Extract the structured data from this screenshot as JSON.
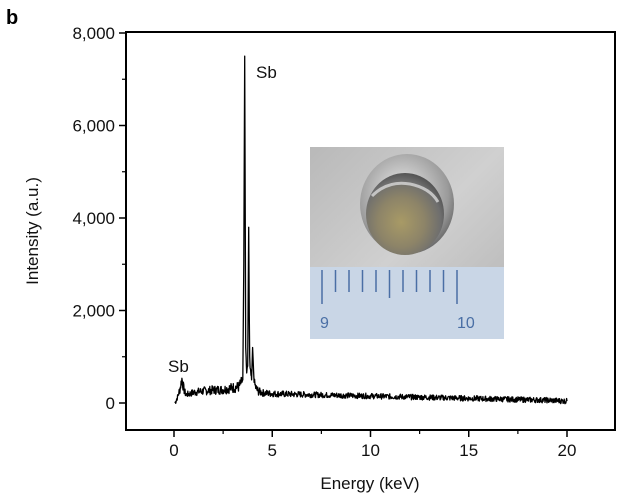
{
  "panel_label": "b",
  "chart_data": {
    "type": "line",
    "title": "",
    "xlabel": "Energy (keV)",
    "ylabel": "Intensity (a.u.)",
    "xlim": [
      -2.5,
      22.5
    ],
    "ylim": [
      -600,
      8000
    ],
    "x_ticks": [
      0,
      5,
      10,
      15,
      20
    ],
    "x_tick_labels": [
      "0",
      "5",
      "10",
      "15",
      "20"
    ],
    "y_ticks": [
      0,
      2000,
      4000,
      6000,
      8000
    ],
    "y_tick_labels": [
      "0",
      "2,000",
      "4,000",
      "6,000",
      "8,000"
    ],
    "grid": false,
    "legend": "none",
    "line_color": "#000000",
    "series": [
      {
        "x": [
          0.05,
          0.2,
          0.3,
          0.4,
          0.5,
          0.6,
          0.8,
          1.0,
          1.5,
          2.0,
          2.5,
          3.0,
          3.3,
          3.5,
          3.55,
          3.6,
          3.65,
          3.7,
          3.75,
          3.8,
          3.85,
          3.9,
          3.95,
          4.0,
          4.05,
          4.1,
          4.2,
          4.3,
          4.5,
          5.0,
          6.0,
          7.0,
          8.0,
          9.0,
          10.0,
          11.0,
          12.0,
          13.0,
          14.0,
          15.0,
          16.0,
          17.0,
          18.0,
          19.0,
          20.0
        ],
        "y": [
          0,
          150,
          300,
          520,
          300,
          180,
          200,
          230,
          260,
          280,
          290,
          330,
          350,
          500,
          3000,
          7500,
          1200,
          600,
          800,
          3800,
          900,
          600,
          500,
          1200,
          700,
          400,
          300,
          250,
          220,
          200,
          190,
          180,
          170,
          160,
          150,
          140,
          130,
          120,
          110,
          100,
          90,
          80,
          70,
          60,
          40
        ]
      }
    ],
    "annotations": [
      {
        "text": "Sb",
        "x": 3.75,
        "y": 7500
      },
      {
        "text": "Sb",
        "x": 0.4,
        "y": 700
      }
    ]
  },
  "inset": {
    "ruler_labels": [
      "9",
      "10"
    ],
    "icon": "sample-photo-icon"
  }
}
